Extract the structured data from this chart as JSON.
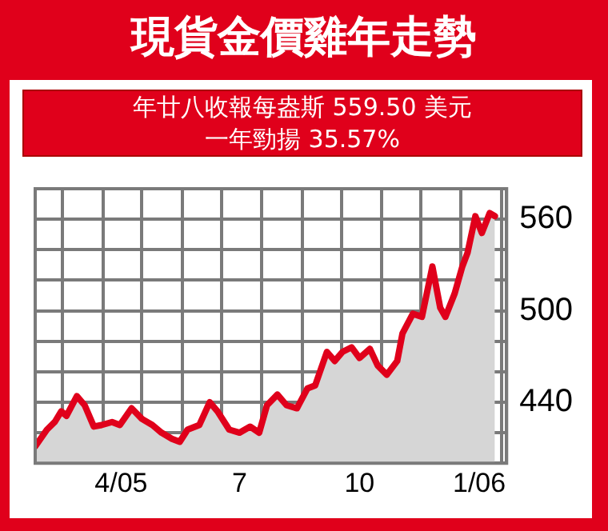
{
  "chart_data": {
    "type": "area",
    "title": "現貨金價雞年走勢",
    "subtitle": "年廿八收報每盎斯 559.50 美元",
    "annotations": [
      "一年勁揚 35.57%"
    ],
    "x": [
      "2005-02-08",
      "2005-02-17",
      "2005-02-23",
      "2005-02-28",
      "2005-03-04",
      "2005-03-12",
      "2005-03-18",
      "2005-03-25",
      "2005-03-31",
      "2005-04-08",
      "2005-04-14",
      "2005-04-23",
      "2005-05-01",
      "2005-05-09",
      "2005-05-16",
      "2005-05-24",
      "2005-05-30",
      "2005-06-05",
      "2005-06-14",
      "2005-06-22",
      "2005-06-28",
      "2005-07-07",
      "2005-07-15",
      "2005-07-23",
      "2005-07-30",
      "2005-08-05",
      "2005-08-13",
      "2005-08-20",
      "2005-08-28",
      "2005-09-05",
      "2005-09-11",
      "2005-09-20",
      "2005-09-26",
      "2005-10-02",
      "2005-10-09",
      "2005-10-15",
      "2005-10-23",
      "2005-10-29",
      "2005-11-05",
      "2005-11-13",
      "2005-11-17",
      "2005-11-25",
      "2005-12-02",
      "2005-12-10",
      "2005-12-16",
      "2005-12-20",
      "2005-12-27",
      "2006-01-02",
      "2006-01-06",
      "2006-01-12",
      "2006-01-17",
      "2006-01-23",
      "2006-01-27"
    ],
    "series": [
      {
        "color": "#e0001b",
        "values": [
          411,
          422,
          427,
          434,
          431,
          444,
          438,
          424,
          425,
          427,
          425,
          436,
          429,
          425,
          420,
          416,
          414,
          422,
          425,
          440,
          434,
          422,
          420,
          424,
          420,
          438,
          445,
          438,
          436,
          449,
          451,
          473,
          467,
          473,
          476,
          469,
          475,
          464,
          458,
          467,
          485,
          498,
          496,
          529,
          502,
          496,
          511,
          529,
          538,
          562,
          551,
          564,
          562
        ]
      }
    ],
    "xlim": [
      "2005-02-08",
      "2006-02-05"
    ],
    "xticks": [
      {
        "value": "2005-03-01",
        "label": null
      },
      {
        "value": "2005-04-01",
        "label": null
      },
      {
        "value": "2005-04-15",
        "label": "4/05"
      },
      {
        "value": "2005-05-01",
        "label": null
      },
      {
        "value": "2005-06-01",
        "label": null
      },
      {
        "value": "2005-07-01",
        "label": null
      },
      {
        "value": "2005-07-15",
        "label": "7"
      },
      {
        "value": "2005-08-01",
        "label": null
      },
      {
        "value": "2005-09-01",
        "label": null
      },
      {
        "value": "2005-10-01",
        "label": null
      },
      {
        "value": "2005-10-15",
        "label": "10"
      },
      {
        "value": "2005-11-01",
        "label": null
      },
      {
        "value": "2005-12-01",
        "label": null
      },
      {
        "value": "2006-01-01",
        "label": null
      },
      {
        "value": "2006-01-15",
        "label": "1/06"
      },
      {
        "value": "2006-02-01",
        "label": null
      }
    ],
    "ylim": [
      400,
      580
    ],
    "yticks": [
      {
        "value": 420,
        "label": null
      },
      440,
      {
        "value": 460,
        "label": null
      },
      {
        "value": 480,
        "label": null
      },
      500,
      {
        "value": 520,
        "label": null
      },
      {
        "value": 540,
        "label": null
      },
      560
    ],
    "grid": true,
    "legend": false,
    "marker": "none",
    "line_style": "solid"
  }
}
